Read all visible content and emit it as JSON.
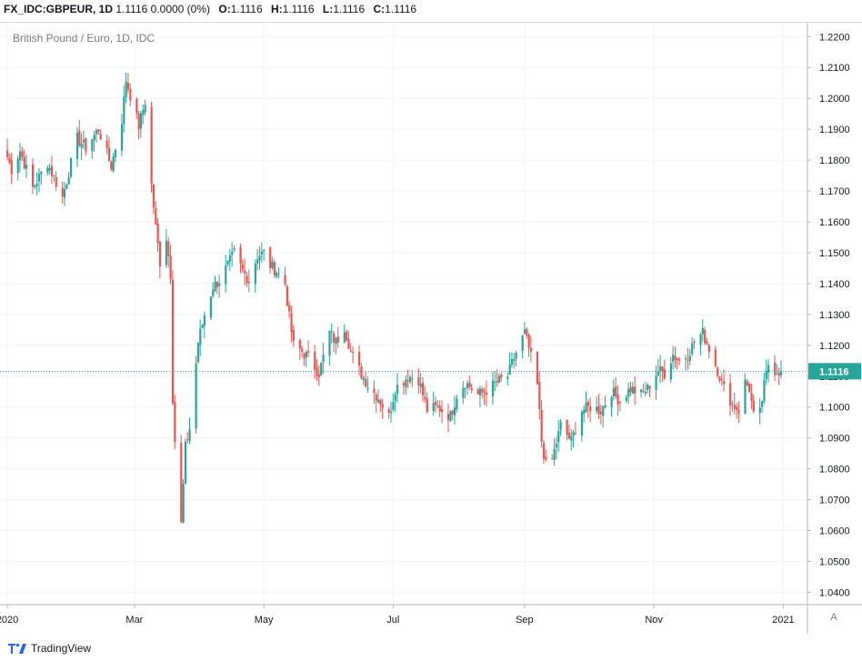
{
  "header": {
    "symbol": "FX_IDC:GBPEUR, 1D",
    "change": "1.1116 0.0000 (0%)",
    "o_label": "O:",
    "o_value": "1.1116",
    "h_label": "H:",
    "h_value": "1.1116",
    "l_label": "L:",
    "l_value": "1.1116",
    "c_label": "C:",
    "c_value": "1.1116"
  },
  "series_label": "British Pound / Euro, 1D, IDC",
  "price_tag": "1.1116",
  "auto_scale": "A",
  "brand": "TradingView",
  "colors": {
    "up": "#26a69a",
    "down": "#ef5350",
    "grid": "#f0f3fa",
    "axis_text": "#131722",
    "price_tag_bg": "#26a69a"
  },
  "chart_data": {
    "type": "candlestick",
    "title": "British Pound / Euro, 1D, IDC",
    "y_axis_position": "right",
    "ylim": [
      1.036,
      1.2245
    ],
    "y_ticks": [
      "1.2200",
      "1.2100",
      "1.2000",
      "1.1900",
      "1.1800",
      "1.1700",
      "1.1600",
      "1.1500",
      "1.1400",
      "1.1300",
      "1.1200",
      "1.1100",
      "1.1000",
      "1.0900",
      "1.0800",
      "1.0700",
      "1.0600",
      "1.0500",
      "1.0400"
    ],
    "x_start": "2020-01-01",
    "x_end": "2021-01-06",
    "x_ticks": [
      {
        "date": "2020-01-01",
        "label": "2020"
      },
      {
        "date": "2020-03-01",
        "label": "Mar"
      },
      {
        "date": "2020-05-01",
        "label": "May"
      },
      {
        "date": "2020-07-01",
        "label": "Jul"
      },
      {
        "date": "2020-09-01",
        "label": "Sep"
      },
      {
        "date": "2020-11-01",
        "label": "Nov"
      },
      {
        "date": "2021-01-01",
        "label": "2021"
      }
    ],
    "grid": true,
    "last_price": 1.1116,
    "close_anchors": [
      [
        "2020-01-01",
        1.181
      ],
      [
        "2020-01-03",
        1.177
      ],
      [
        "2020-01-07",
        1.183
      ],
      [
        "2020-01-13",
        1.171
      ],
      [
        "2020-01-20",
        1.179
      ],
      [
        "2020-01-27",
        1.168
      ],
      [
        "2020-02-03",
        1.187
      ],
      [
        "2020-02-07",
        1.184
      ],
      [
        "2020-02-13",
        1.19
      ],
      [
        "2020-02-19",
        1.178
      ],
      [
        "2020-02-24",
        1.193
      ],
      [
        "2020-02-26",
        1.206
      ],
      [
        "2020-03-03",
        1.191
      ],
      [
        "2020-03-06",
        1.199
      ],
      [
        "2020-03-09",
        1.172
      ],
      [
        "2020-03-11",
        1.158
      ],
      [
        "2020-03-13",
        1.147
      ],
      [
        "2020-03-16",
        1.155
      ],
      [
        "2020-03-18",
        1.143
      ],
      [
        "2020-03-19",
        1.103
      ],
      [
        "2020-03-20",
        1.089
      ],
      [
        "2020-03-23",
        1.062
      ],
      [
        "2020-03-25",
        1.087
      ],
      [
        "2020-03-27",
        1.093
      ],
      [
        "2020-03-31",
        1.121
      ],
      [
        "2020-04-03",
        1.13
      ],
      [
        "2020-04-07",
        1.139
      ],
      [
        "2020-04-10",
        1.141
      ],
      [
        "2020-04-14",
        1.146
      ],
      [
        "2020-04-17",
        1.15
      ],
      [
        "2020-04-21",
        1.144
      ],
      [
        "2020-04-24",
        1.141
      ],
      [
        "2020-04-28",
        1.149
      ],
      [
        "2020-05-01",
        1.15
      ],
      [
        "2020-05-04",
        1.146
      ],
      [
        "2020-05-07",
        1.144
      ],
      [
        "2020-05-11",
        1.14
      ],
      [
        "2020-05-13",
        1.129
      ],
      [
        "2020-05-15",
        1.12
      ],
      [
        "2020-05-19",
        1.118
      ],
      [
        "2020-05-22",
        1.116
      ],
      [
        "2020-05-27",
        1.111
      ],
      [
        "2020-06-01",
        1.124
      ],
      [
        "2020-06-04",
        1.121
      ],
      [
        "2020-06-08",
        1.126
      ],
      [
        "2020-06-11",
        1.118
      ],
      [
        "2020-06-15",
        1.112
      ],
      [
        "2020-06-19",
        1.107
      ],
      [
        "2020-06-24",
        1.103
      ],
      [
        "2020-06-29",
        1.097
      ],
      [
        "2020-07-02",
        1.106
      ],
      [
        "2020-07-08",
        1.11
      ],
      [
        "2020-07-13",
        1.109
      ],
      [
        "2020-07-17",
        1.099
      ],
      [
        "2020-07-22",
        1.1
      ],
      [
        "2020-07-28",
        1.097
      ],
      [
        "2020-07-31",
        1.104
      ],
      [
        "2020-08-04",
        1.108
      ],
      [
        "2020-08-10",
        1.104
      ],
      [
        "2020-08-13",
        1.105
      ],
      [
        "2020-08-19",
        1.108
      ],
      [
        "2020-08-24",
        1.11
      ],
      [
        "2020-08-27",
        1.116
      ],
      [
        "2020-09-01",
        1.124
      ],
      [
        "2020-09-03",
        1.119
      ],
      [
        "2020-09-07",
        1.107
      ],
      [
        "2020-09-09",
        1.089
      ],
      [
        "2020-09-11",
        1.081
      ],
      [
        "2020-09-14",
        1.083
      ],
      [
        "2020-09-18",
        1.094
      ],
      [
        "2020-09-23",
        1.089
      ],
      [
        "2020-09-28",
        1.099
      ],
      [
        "2020-10-02",
        1.1
      ],
      [
        "2020-10-07",
        1.099
      ],
      [
        "2020-10-12",
        1.105
      ],
      [
        "2020-10-16",
        1.102
      ],
      [
        "2020-10-21",
        1.106
      ],
      [
        "2020-10-26",
        1.104
      ],
      [
        "2020-10-29",
        1.106
      ],
      [
        "2020-11-03",
        1.112
      ],
      [
        "2020-11-06",
        1.111
      ],
      [
        "2020-11-10",
        1.117
      ],
      [
        "2020-11-13",
        1.115
      ],
      [
        "2020-11-17",
        1.117
      ],
      [
        "2020-11-20",
        1.121
      ],
      [
        "2020-11-24",
        1.124
      ],
      [
        "2020-11-27",
        1.119
      ],
      [
        "2020-12-01",
        1.112
      ],
      [
        "2020-12-04",
        1.106
      ],
      [
        "2020-12-08",
        1.101
      ],
      [
        "2020-12-11",
        1.099
      ],
      [
        "2020-12-14",
        1.108
      ],
      [
        "2020-12-16",
        1.106
      ],
      [
        "2020-12-18",
        1.097
      ],
      [
        "2020-12-21",
        1.098
      ],
      [
        "2020-12-23",
        1.107
      ],
      [
        "2020-12-25",
        1.114
      ],
      [
        "2020-12-28",
        1.112
      ],
      [
        "2020-12-31",
        1.1116
      ]
    ]
  }
}
